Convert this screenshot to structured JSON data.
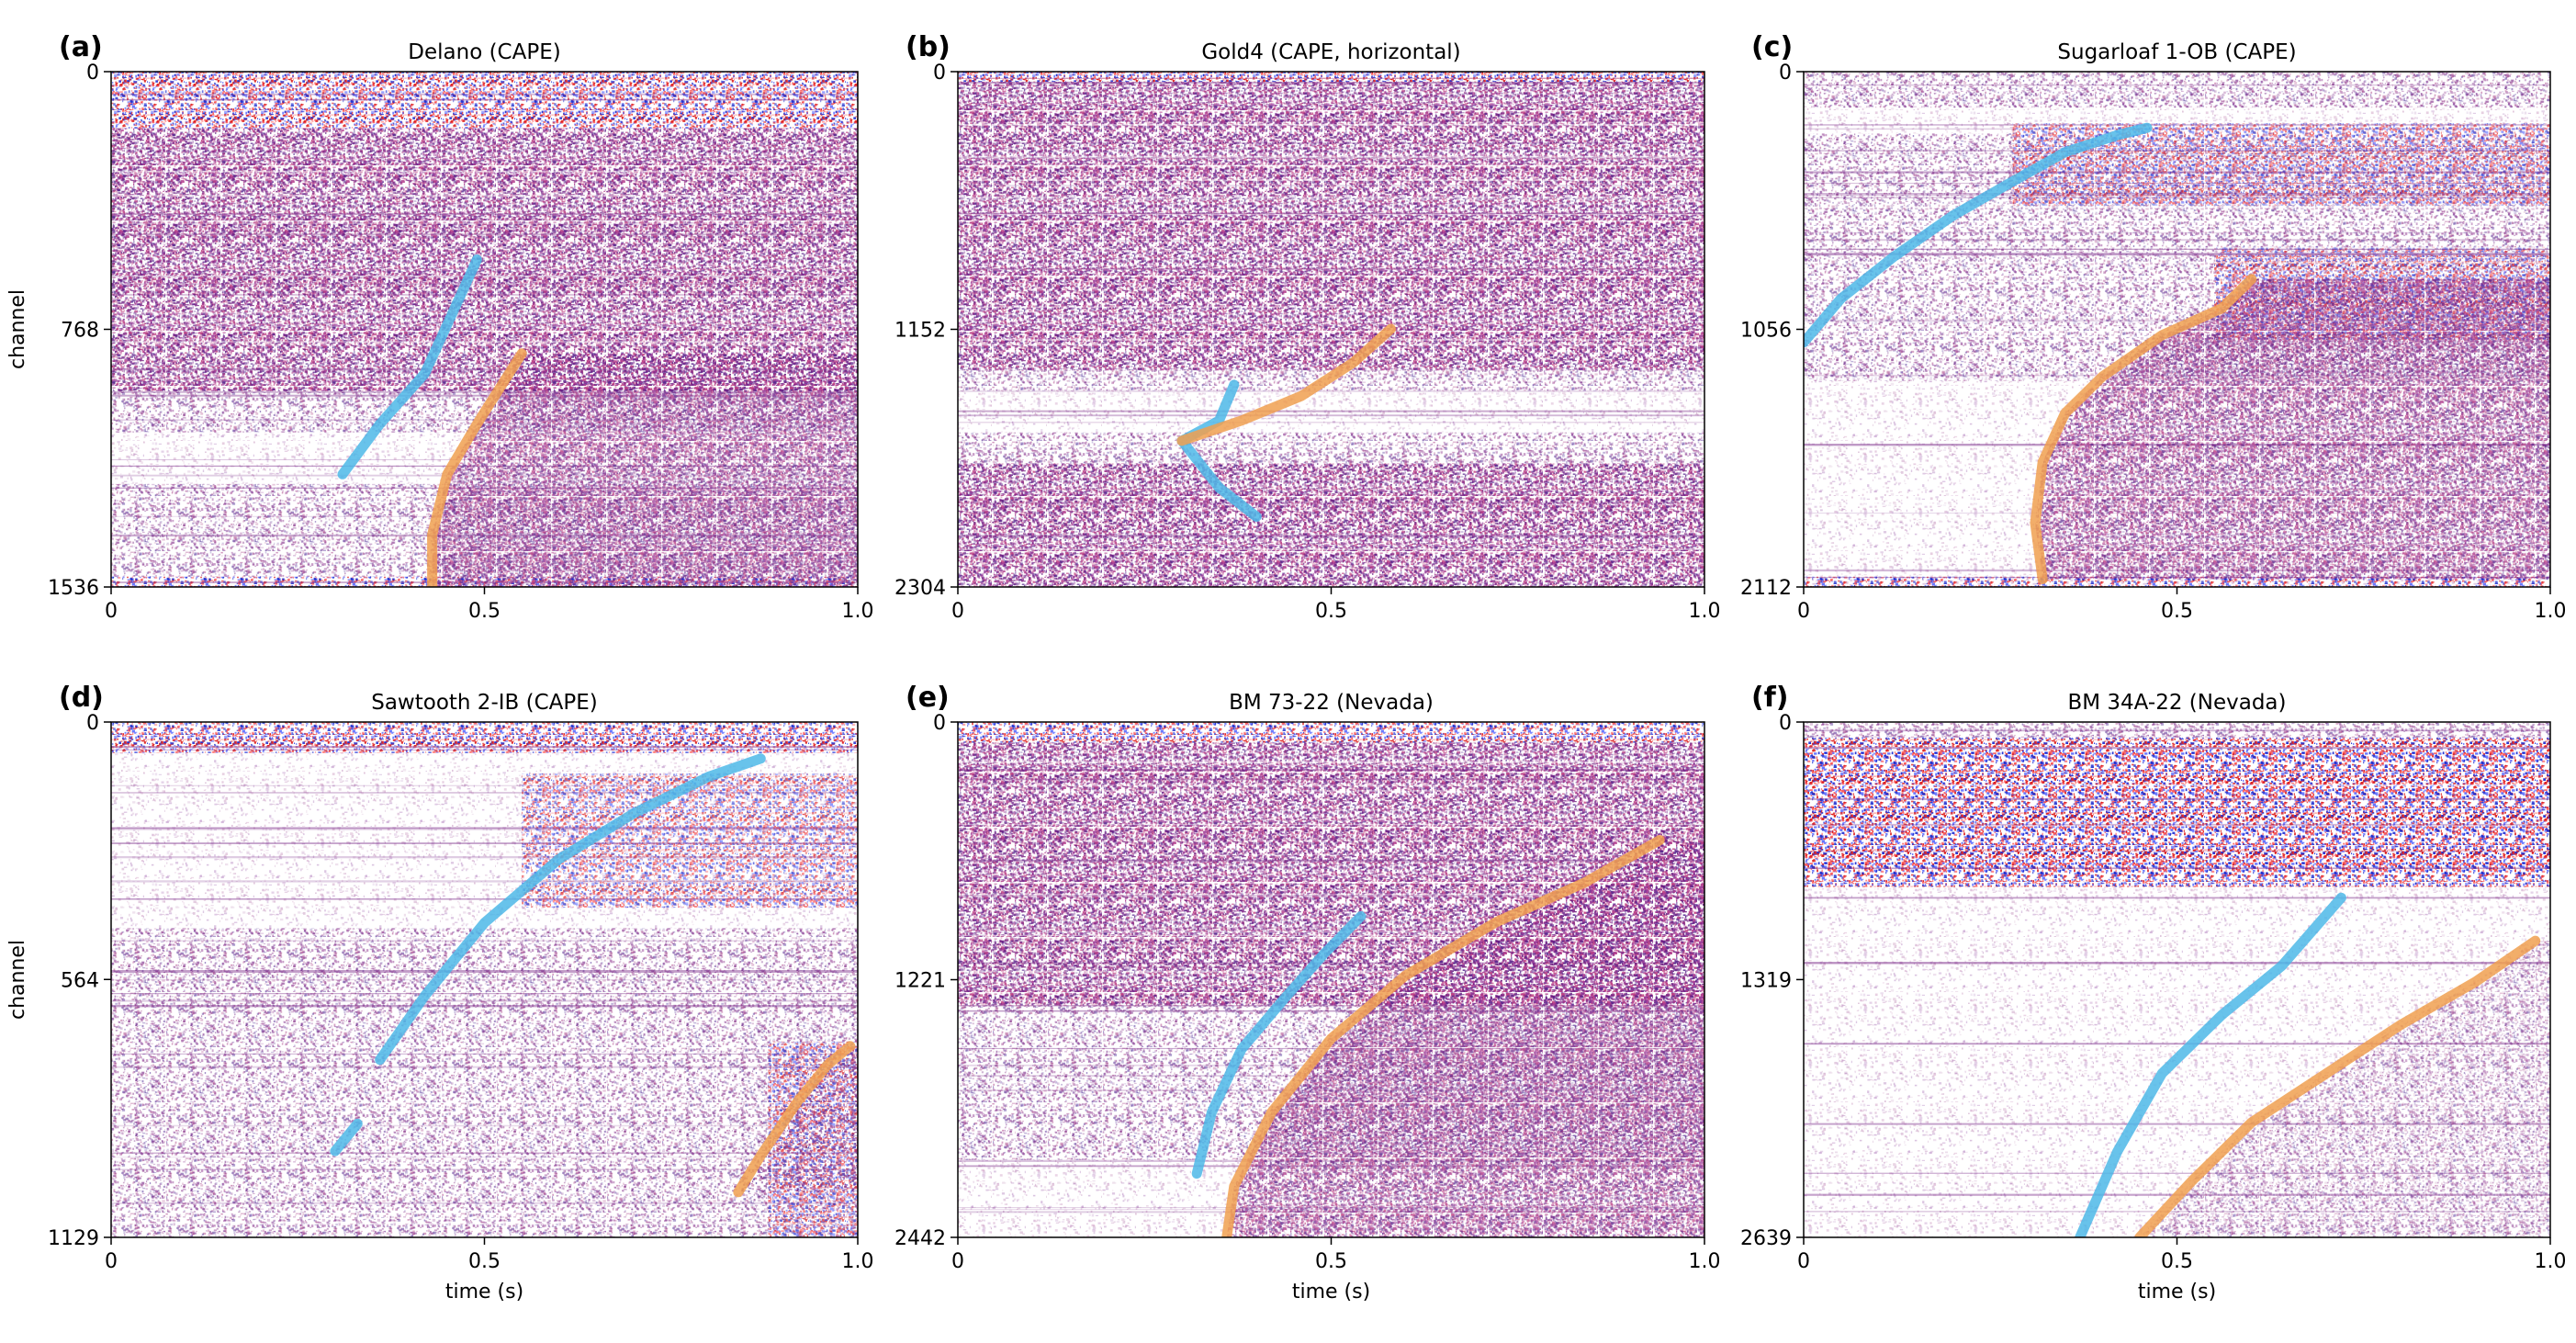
{
  "colors": {
    "p_wave": "#4db8e8",
    "s_wave": "#f0a050",
    "wiggle_positive": "#dd2020",
    "wiggle_negative": "#1f2fd0",
    "noise_tone": "#7a2a88",
    "background": "#ffffff"
  },
  "chart_data": [
    {
      "type": "heatmap",
      "letter": "(a)",
      "title": "Delano (CAPE)",
      "xlabel": "",
      "ylabel": "channel",
      "xlim": [
        0,
        1.0
      ],
      "ylim": [
        1536,
        0
      ],
      "xticks": [
        "0",
        "0.5",
        "1.0"
      ],
      "yticks": [
        {
          "value": 0,
          "label": "0"
        },
        {
          "value": 768,
          "label": "768"
        },
        {
          "value": 1536,
          "label": "1536"
        }
      ],
      "picks": [
        {
          "phase": "P",
          "points": [
            [
              0.31,
              1200
            ],
            [
              0.36,
              1050
            ],
            [
              0.42,
              900
            ],
            [
              0.49,
              560
            ]
          ]
        },
        {
          "phase": "S",
          "points": [
            [
              0.43,
              1536
            ],
            [
              0.43,
              1380
            ],
            [
              0.45,
              1200
            ],
            [
              0.49,
              1050
            ],
            [
              0.55,
              840
            ]
          ]
        }
      ]
    },
    {
      "type": "heatmap",
      "letter": "(b)",
      "title": "Gold4 (CAPE, horizontal)",
      "xlabel": "",
      "ylabel": "",
      "xlim": [
        0,
        1.0
      ],
      "ylim": [
        2304,
        0
      ],
      "xticks": [
        "0",
        "0.5",
        "1.0"
      ],
      "yticks": [
        {
          "value": 0,
          "label": "0"
        },
        {
          "value": 1152,
          "label": "1152"
        },
        {
          "value": 2304,
          "label": "2304"
        }
      ],
      "picks": [
        {
          "phase": "P",
          "points": [
            [
              0.37,
              1400
            ],
            [
              0.35,
              1560
            ],
            [
              0.3,
              1650
            ],
            [
              0.35,
              1860
            ],
            [
              0.4,
              1990
            ]
          ]
        },
        {
          "phase": "S",
          "points": [
            [
              0.3,
              1650
            ],
            [
              0.38,
              1560
            ],
            [
              0.46,
              1450
            ],
            [
              0.53,
              1300
            ],
            [
              0.58,
              1150
            ]
          ]
        }
      ]
    },
    {
      "type": "heatmap",
      "letter": "(c)",
      "title": "Sugarloaf 1-OB (CAPE)",
      "xlabel": "",
      "ylabel": "",
      "xlim": [
        0,
        1.0
      ],
      "ylim": [
        2112,
        0
      ],
      "xticks": [
        "0",
        "0.5",
        "1.0"
      ],
      "yticks": [
        {
          "value": 0,
          "label": "0"
        },
        {
          "value": 1056,
          "label": "1056"
        },
        {
          "value": 2112,
          "label": "2112"
        }
      ],
      "picks": [
        {
          "phase": "P",
          "points": [
            [
              0.0,
              1110
            ],
            [
              0.05,
              930
            ],
            [
              0.12,
              760
            ],
            [
              0.2,
              590
            ],
            [
              0.28,
              450
            ],
            [
              0.35,
              330
            ],
            [
              0.42,
              260
            ],
            [
              0.46,
              230
            ]
          ]
        },
        {
          "phase": "S",
          "points": [
            [
              0.32,
              2080
            ],
            [
              0.31,
              1850
            ],
            [
              0.32,
              1600
            ],
            [
              0.35,
              1400
            ],
            [
              0.4,
              1250
            ],
            [
              0.48,
              1080
            ],
            [
              0.56,
              970
            ],
            [
              0.6,
              850
            ]
          ]
        }
      ]
    },
    {
      "type": "heatmap",
      "letter": "(d)",
      "title": "Sawtooth 2-IB (CAPE)",
      "xlabel": "time (s)",
      "ylabel": "channel",
      "xlim": [
        0,
        1.0
      ],
      "ylim": [
        1129,
        0
      ],
      "xticks": [
        "0",
        "0.5",
        "1.0"
      ],
      "yticks": [
        {
          "value": 0,
          "label": "0"
        },
        {
          "value": 564,
          "label": "564"
        },
        {
          "value": 1129,
          "label": "1129"
        }
      ],
      "picks": [
        {
          "phase": "P",
          "points": [
            [
              0.36,
              740
            ],
            [
              0.42,
              600
            ],
            [
              0.5,
              440
            ],
            [
              0.6,
              300
            ],
            [
              0.7,
              200
            ],
            [
              0.8,
              120
            ],
            [
              0.87,
              80
            ]
          ]
        },
        {
          "phase": "P",
          "points": [
            [
              0.3,
              940
            ],
            [
              0.33,
              880
            ]
          ]
        },
        {
          "phase": "S",
          "points": [
            [
              0.84,
              1030
            ],
            [
              0.87,
              950
            ],
            [
              0.92,
              830
            ],
            [
              0.96,
              750
            ],
            [
              0.99,
              710
            ]
          ]
        }
      ]
    },
    {
      "type": "heatmap",
      "letter": "(e)",
      "title": "BM 73-22 (Nevada)",
      "xlabel": "time (s)",
      "ylabel": "",
      "xlim": [
        0,
        1.0
      ],
      "ylim": [
        2442,
        0
      ],
      "xticks": [
        "0",
        "0.5",
        "1.0"
      ],
      "yticks": [
        {
          "value": 0,
          "label": "0"
        },
        {
          "value": 1221,
          "label": "1221"
        },
        {
          "value": 2442,
          "label": "2442"
        }
      ],
      "picks": [
        {
          "phase": "P",
          "points": [
            [
              0.32,
              2140
            ],
            [
              0.34,
              1850
            ],
            [
              0.38,
              1550
            ],
            [
              0.44,
              1300
            ],
            [
              0.49,
              1100
            ],
            [
              0.54,
              920
            ]
          ]
        },
        {
          "phase": "S",
          "points": [
            [
              0.36,
              2442
            ],
            [
              0.37,
              2200
            ],
            [
              0.42,
              1850
            ],
            [
              0.5,
              1500
            ],
            [
              0.6,
              1200
            ],
            [
              0.72,
              950
            ],
            [
              0.84,
              760
            ],
            [
              0.94,
              560
            ]
          ]
        }
      ]
    },
    {
      "type": "heatmap",
      "letter": "(f)",
      "title": "BM 34A-22 (Nevada)",
      "xlabel": "time (s)",
      "ylabel": "",
      "xlim": [
        0,
        1.0
      ],
      "ylim": [
        2639,
        0
      ],
      "xticks": [
        "0",
        "0.5",
        "1.0"
      ],
      "yticks": [
        {
          "value": 0,
          "label": "0"
        },
        {
          "value": 1319,
          "label": "1319"
        },
        {
          "value": 2639,
          "label": "2639"
        }
      ],
      "picks": [
        {
          "phase": "P",
          "points": [
            [
              0.37,
              2639
            ],
            [
              0.42,
              2200
            ],
            [
              0.48,
              1800
            ],
            [
              0.56,
              1500
            ],
            [
              0.64,
              1250
            ],
            [
              0.72,
              900
            ]
          ]
        },
        {
          "phase": "S",
          "points": [
            [
              0.45,
              2639
            ],
            [
              0.52,
              2350
            ],
            [
              0.6,
              2050
            ],
            [
              0.7,
              1800
            ],
            [
              0.8,
              1550
            ],
            [
              0.9,
              1330
            ],
            [
              0.98,
              1120
            ]
          ]
        }
      ]
    }
  ]
}
